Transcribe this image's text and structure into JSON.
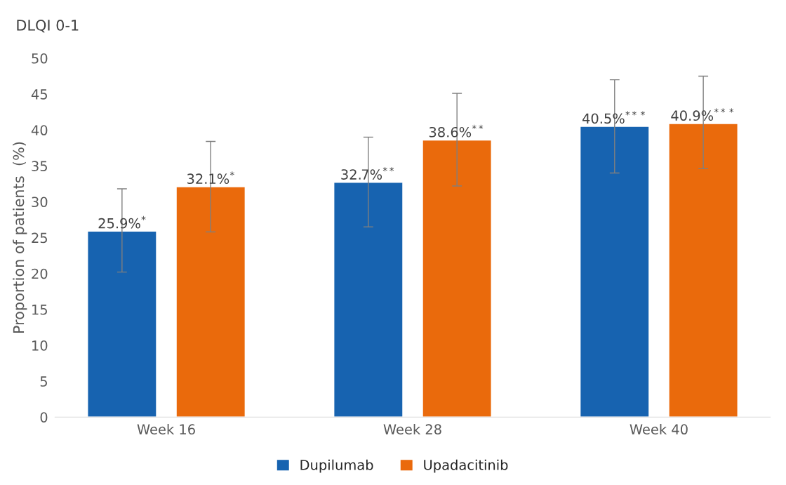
{
  "chart_data": {
    "type": "bar",
    "title": "DLQI 0-1",
    "ylabel": "Proportion of patients  (%)",
    "categories": [
      "Week 16",
      "Week 28",
      "Week 40"
    ],
    "series": [
      {
        "name": "Dupilumab",
        "color": "#1763b0",
        "values": [
          25.9,
          32.7,
          40.5
        ],
        "errors": [
          [
            20.2,
            31.8
          ],
          [
            26.5,
            39.0
          ],
          [
            34.0,
            47.0
          ]
        ],
        "value_labels": [
          "25.9%$^{*}$",
          "32.7%$^{**}$",
          "40.5%$^{***}$"
        ]
      },
      {
        "name": "Upadacitinib",
        "color": "#ea6a0c",
        "values": [
          32.1,
          38.6,
          40.9
        ],
        "errors": [
          [
            25.8,
            38.4
          ],
          [
            32.2,
            45.1
          ],
          [
            34.6,
            47.5
          ]
        ],
        "value_labels": [
          "32.1%$^{*}$",
          "38.6%$^{**}$",
          "40.9%$^{***}$"
        ]
      }
    ],
    "ylim": [
      0,
      50
    ],
    "yticks": [
      0,
      5,
      10,
      15,
      20,
      25,
      30,
      35,
      40,
      45,
      50
    ],
    "grid": false,
    "legend": "bottom"
  }
}
